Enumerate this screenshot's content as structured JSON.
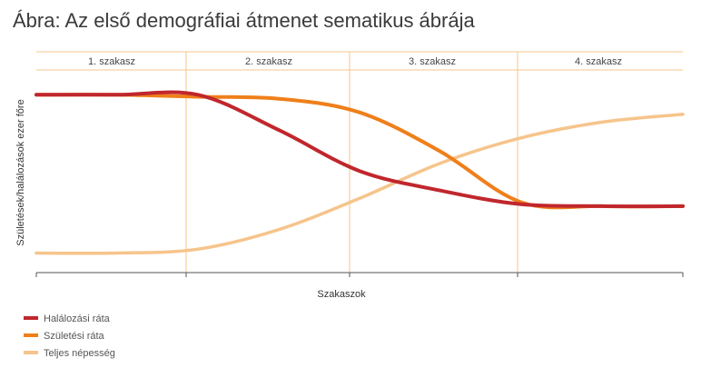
{
  "chart_data": {
    "type": "line",
    "title": "Ábra: Az első demográfiai átmenet sematikus ábrája",
    "xlabel": "Szakaszok",
    "ylabel": "Születések/halálozások ezer főre",
    "stages": [
      "1. szakasz",
      "2.  szakasz",
      "3.  szakasz",
      "4. szakasz"
    ],
    "x": [
      0,
      0.5,
      1,
      1.5,
      2,
      2.5,
      3,
      3.5,
      4
    ],
    "xlim": [
      0,
      4
    ],
    "ylim": [
      0,
      1
    ],
    "grid": false,
    "legend_position": "bottom-left",
    "series": [
      {
        "name": "Halálozási ráta",
        "color": "#c0272d",
        "values": [
          0.91,
          0.91,
          0.91,
          0.73,
          0.52,
          0.42,
          0.35,
          0.34,
          0.34
        ]
      },
      {
        "name": "Születési ráta",
        "color": "#ef7f1a",
        "values": [
          0.91,
          0.91,
          0.9,
          0.89,
          0.82,
          0.62,
          0.36,
          0.34,
          0.34
        ]
      },
      {
        "name": "Teljes népesség",
        "color": "#f6c48b",
        "values": [
          0.1,
          0.1,
          0.12,
          0.22,
          0.38,
          0.56,
          0.69,
          0.77,
          0.81
        ]
      }
    ]
  }
}
